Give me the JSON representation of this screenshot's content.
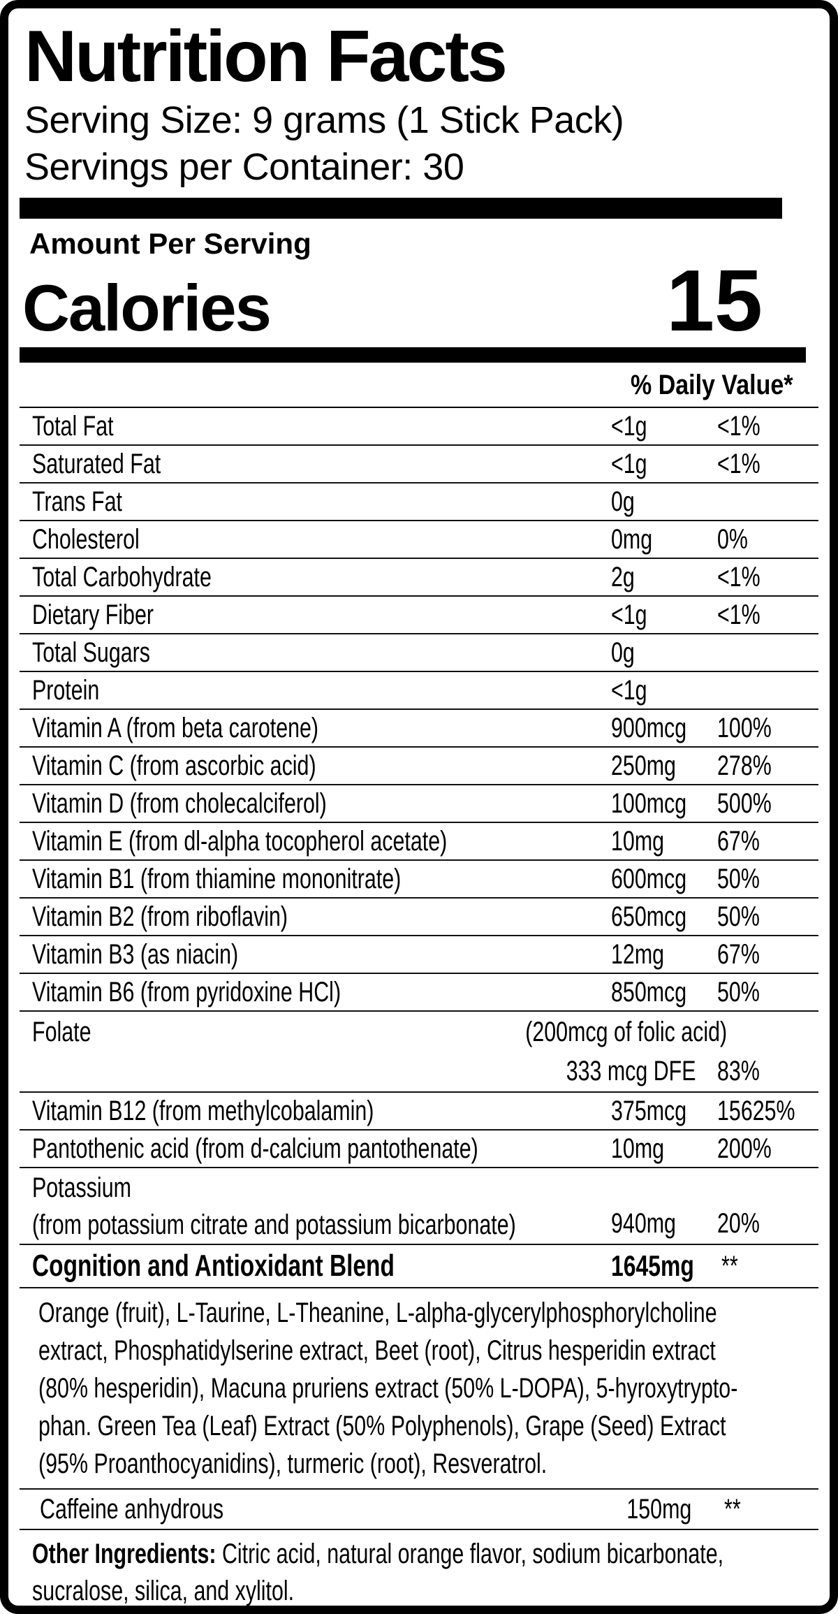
{
  "label": {
    "title": "Nutrition Facts",
    "serving_size": "Serving Size: 9 grams (1 Stick Pack)",
    "servings_per_container": "Servings per Container: 30",
    "amount_per_serving": "Amount Per Serving",
    "calories_label": "Calories",
    "calories_value": "15",
    "daily_value_header": "% Daily Value*",
    "rows": [
      {
        "name": "Total Fat",
        "amount": "<1g",
        "dv": "<1%"
      },
      {
        "name": "Saturated Fat",
        "amount": "<1g",
        "dv": "<1%"
      },
      {
        "name": "Trans Fat",
        "amount": "0g",
        "dv": ""
      },
      {
        "name": "Cholesterol",
        "amount": "0mg",
        "dv": "0%"
      },
      {
        "name": "Total Carbohydrate",
        "amount": "2g",
        "dv": "<1%"
      },
      {
        "name": "Dietary Fiber",
        "amount": "<1g",
        "dv": "<1%"
      },
      {
        "name": "Total Sugars",
        "amount": "0g",
        "dv": ""
      },
      {
        "name": "Protein",
        "amount": "<1g",
        "dv": ""
      },
      {
        "name": "Vitamin A (from beta carotene)",
        "amount": "900mcg",
        "dv": "100%"
      },
      {
        "name": "Vitamin C (from ascorbic acid)",
        "amount": "250mg",
        "dv": "278%"
      },
      {
        "name": "Vitamin D (from cholecalciferol)",
        "amount": "100mcg",
        "dv": "500%"
      },
      {
        "name": "Vitamin E (from dl-alpha tocopherol acetate)",
        "amount": "10mg",
        "dv": "67%"
      },
      {
        "name": "Vitamin B1 (from thiamine mononitrate)",
        "amount": "600mcg",
        "dv": "50%"
      },
      {
        "name": "Vitamin B2 (from riboflavin)",
        "amount": "650mcg",
        "dv": "50%"
      },
      {
        "name": "Vitamin B3 (as niacin)",
        "amount": "12mg",
        "dv": "67%"
      },
      {
        "name": "Vitamin B6 (from pyridoxine HCl)",
        "amount": "850mcg",
        "dv": "50%"
      }
    ],
    "folate": {
      "name": "Folate",
      "paren": "(200mcg of folic acid)",
      "amount": "333 mcg DFE",
      "dv": "83%"
    },
    "rows2": [
      {
        "name": "Vitamin B12 (from methylcobalamin)",
        "amount": "375mcg",
        "dv": "15625%"
      },
      {
        "name": "Pantothenic acid (from d-calcium pantothenate)",
        "amount": "10mg",
        "dv": "200%"
      }
    ],
    "potassium": {
      "name": "Potassium",
      "source": "(from potassium citrate and potassium bicarbonate)",
      "amount": "940mg",
      "dv": "20%"
    },
    "blend": {
      "name": "Cognition and Antioxidant Blend",
      "amount": "1645mg",
      "dv": "**",
      "ingredient_lines": [
        "Orange (fruit), L-Taurine, L-Theanine, L-alpha-glycerylphosphorylcholine",
        "extract, Phosphatidylserine extract, Beet (root), Citrus hesperidin extract",
        "(80% hesperidin), Macuna pruriens extract (50% L-DOPA), 5-hyroxytrypto-",
        "phan. Green Tea (Leaf) Extract (50% Polyphenols), Grape (Seed) Extract",
        "(95% Proanthocyanidins), turmeric (root), Resveratrol."
      ]
    },
    "caffeine": {
      "name": "Caffeine anhydrous",
      "amount": "150mg",
      "dv": "**"
    },
    "other_ingredients": {
      "lead": "Other Ingredients:",
      "line1_rest": " Citric acid, natural orange flavor, sodium bicarbonate,",
      "line2": "sucralose, silica, and xylitol."
    }
  },
  "colors": {
    "ink": "#000000",
    "paper": "#ffffff"
  }
}
